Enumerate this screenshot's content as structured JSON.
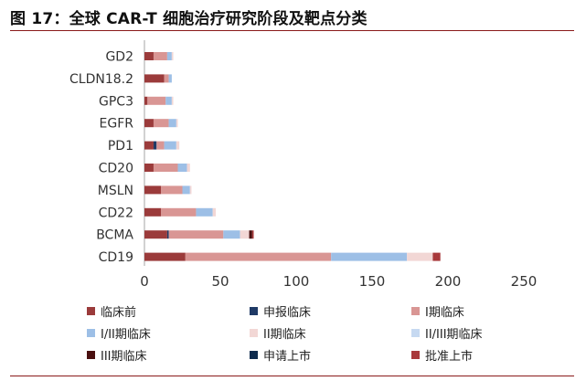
{
  "header": {
    "title": "图 17：全球 CAR-T 细胞治疗研究阶段及靶点分类"
  },
  "chart_data": {
    "type": "bar",
    "orientation": "horizontal",
    "stacked": true,
    "categories": [
      "GD2",
      "CLDN18.2",
      "GPC3",
      "EGFR",
      "PD1",
      "CD20",
      "MSLN",
      "CD22",
      "BCMA",
      "CD19"
    ],
    "xlim": [
      0,
      250
    ],
    "xticks": [
      0,
      50,
      100,
      150,
      200,
      250
    ],
    "grid": false,
    "legend_position": "bottom",
    "series": [
      {
        "name": "临床前",
        "color": "#9b3b3b",
        "values": [
          6,
          13,
          2,
          6,
          6,
          6,
          11,
          11,
          15,
          27
        ]
      },
      {
        "name": "申报临床",
        "color": "#1f3a66",
        "values": [
          0,
          0,
          0,
          0,
          2,
          0,
          0,
          0,
          1,
          0
        ]
      },
      {
        "name": "I期临床",
        "color": "#d99694",
        "values": [
          9,
          3,
          12,
          10,
          5,
          16,
          14,
          23,
          36,
          96
        ]
      },
      {
        "name": "I/II期临床",
        "color": "#9dbfe6",
        "values": [
          3,
          2,
          4,
          5,
          8,
          6,
          5,
          11,
          11,
          50
        ]
      },
      {
        "name": "II期临床",
        "color": "#f2d7d5",
        "values": [
          1,
          0,
          1,
          1,
          2,
          2,
          1,
          2,
          6,
          17
        ]
      },
      {
        "name": "II/III期临床",
        "color": "#c6d9f1",
        "values": [
          0,
          0,
          0,
          0,
          0,
          0,
          0,
          0,
          0,
          0
        ]
      },
      {
        "name": "III期临床",
        "color": "#4a1010",
        "values": [
          0,
          0,
          0,
          0,
          0,
          0,
          0,
          0,
          2,
          0
        ]
      },
      {
        "name": "申请上市",
        "color": "#0d2a4d",
        "values": [
          0,
          0,
          0,
          0,
          0,
          0,
          0,
          0,
          0,
          0
        ]
      },
      {
        "name": "批准上市",
        "color": "#a8393b",
        "values": [
          0,
          0,
          0,
          0,
          0,
          0,
          0,
          0,
          1,
          5
        ]
      }
    ]
  }
}
